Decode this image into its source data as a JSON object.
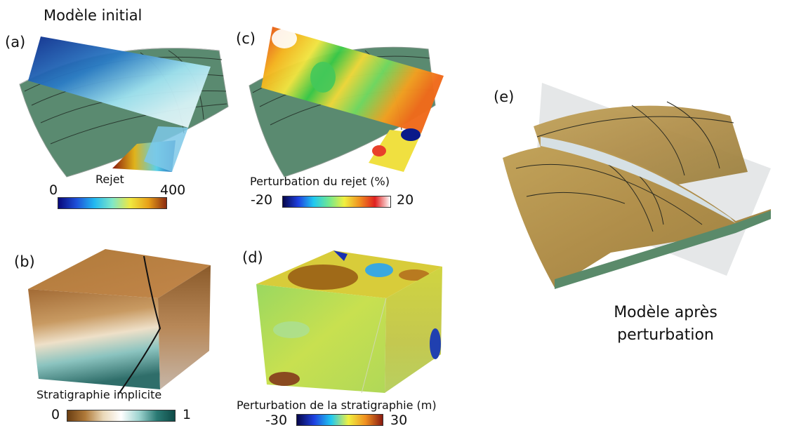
{
  "panel_a": {
    "tag": "(a)",
    "title": "Modèle initial",
    "colorbar": {
      "label": "Rejet",
      "min": "0",
      "max": "400"
    }
  },
  "panel_b": {
    "tag": "(b)",
    "colorbar": {
      "label": "Stratigraphie implicite",
      "min": "0",
      "max": "1"
    }
  },
  "panel_c": {
    "tag": "(c)",
    "colorbar": {
      "label": "Perturbation du rejet (%)",
      "min": "-20",
      "max": "20"
    }
  },
  "panel_d": {
    "tag": "(d)",
    "colorbar": {
      "label": "Perturbation de la stratigraphie (m)",
      "min": "-30",
      "max": "30"
    }
  },
  "panel_e": {
    "tag": "(e)",
    "caption_line1": "Modèle après",
    "caption_line2": "perturbation"
  },
  "colors": {
    "horizon_green": "#56806a",
    "horizon_tan": "#b89a52",
    "fault_gray": "#d8dcdf"
  }
}
